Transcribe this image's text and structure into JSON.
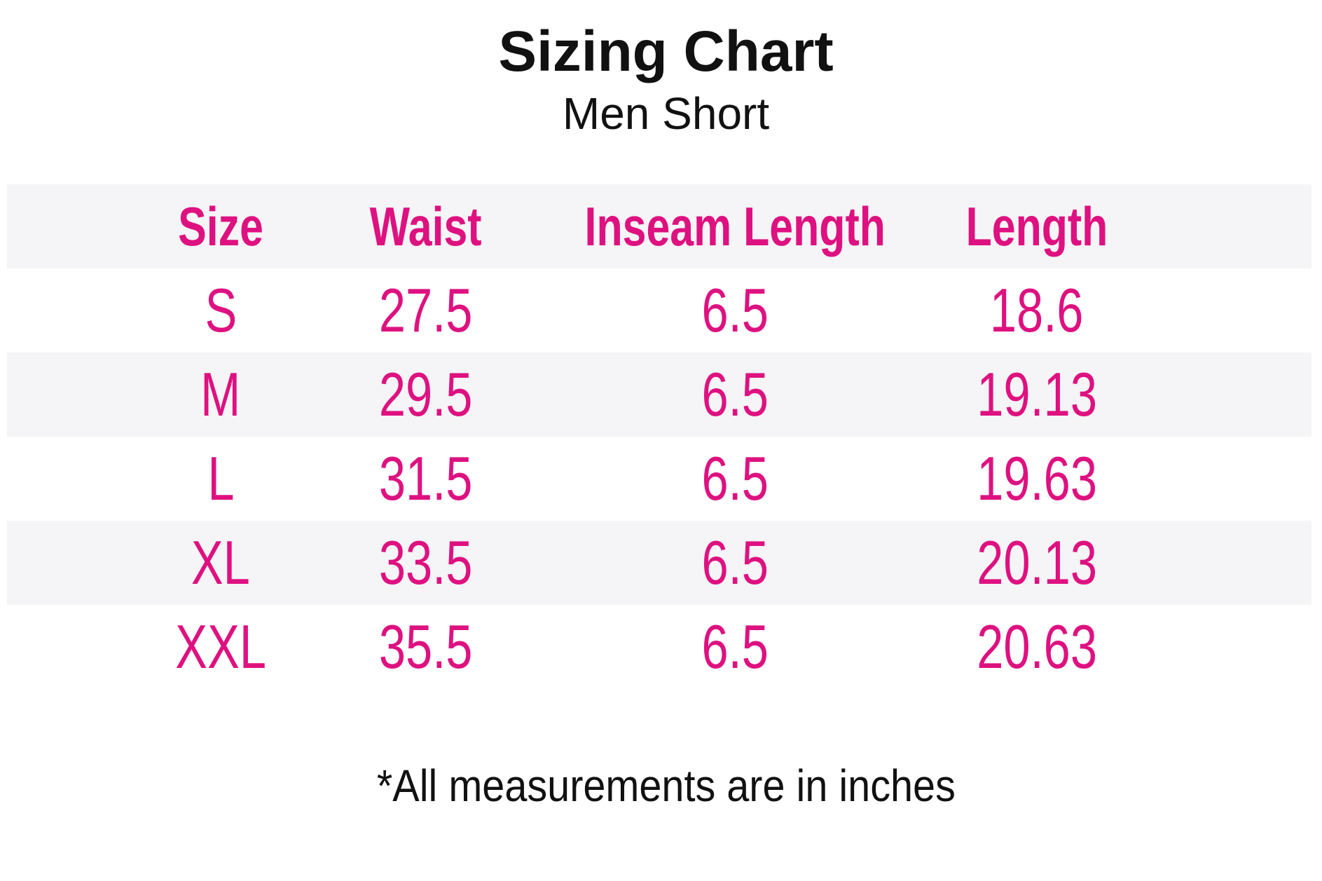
{
  "title": "Sizing Chart",
  "subtitle": "Men Short",
  "footnote": "*All measurements are in inches",
  "colors": {
    "accent_pink": "#DE1180",
    "stripe_gray": "#F5F4F6",
    "text_black": "#111111"
  },
  "table": {
    "headers": [
      "Size",
      "Waist",
      "Inseam Length",
      "Length"
    ],
    "rows": [
      {
        "cells": [
          "S",
          "27.5",
          "6.5",
          "18.6"
        ]
      },
      {
        "cells": [
          "M",
          "29.5",
          "6.5",
          "19.13"
        ]
      },
      {
        "cells": [
          "L",
          "31.5",
          "6.5",
          "19.63"
        ]
      },
      {
        "cells": [
          "XL",
          "33.5",
          "6.5",
          "20.13"
        ]
      },
      {
        "cells": [
          "XXL",
          "35.5",
          "6.5",
          "20.63"
        ]
      }
    ]
  },
  "chart_data": {
    "type": "table",
    "title": "Sizing Chart",
    "subtitle": "Men Short",
    "columns": [
      "Size",
      "Waist",
      "Inseam Length",
      "Length"
    ],
    "rows": [
      [
        "S",
        27.5,
        6.5,
        18.6
      ],
      [
        "M",
        29.5,
        6.5,
        19.13
      ],
      [
        "L",
        31.5,
        6.5,
        19.63
      ],
      [
        "XL",
        33.5,
        6.5,
        20.13
      ],
      [
        "XXL",
        35.5,
        6.5,
        20.63
      ]
    ],
    "units": "inches",
    "note": "*All measurements are in inches"
  }
}
